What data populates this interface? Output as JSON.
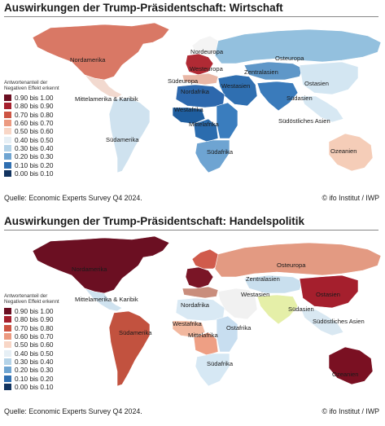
{
  "panels": [
    {
      "title": "Auswirkungen der Trump-Präsidentschaft: Wirtschaft",
      "legend_title": "Antwortenanteil der Negativen Effekt erkennt",
      "source": "Quelle: Economic Experts Survey Q4 2024.",
      "credit": "© ifo Institut / IWP",
      "regions": {
        "nordamerika": {
          "label": "Nordamerika",
          "color": "#d97865"
        },
        "mittelamerika": {
          "label": "Mittelamerika & Karibik",
          "color": "#f2d9cf"
        },
        "suedamerika": {
          "label": "Südamerika",
          "color": "#cfe2ef"
        },
        "nordeuropa": {
          "label": "Nordeuropa",
          "color": "#f4f4f4"
        },
        "westeuropa": {
          "label": "Westeuropa",
          "color": "#b02a34"
        },
        "suedeuropa": {
          "label": "Südeuropa",
          "color": "#e9b7a6"
        },
        "osteuropa": {
          "label": "Osteuropa",
          "color": "#93c0de"
        },
        "zentralasien": {
          "label": "Zentralasien",
          "color": "#5f97c8"
        },
        "westasien": {
          "label": "Westasien",
          "color": "#2f6fb1"
        },
        "ostasien": {
          "label": "Ostasien",
          "color": "#d3e6f2"
        },
        "suedasien": {
          "label": "Südasien",
          "color": "#3a7bbb"
        },
        "suedostasien": {
          "label": "Südöstliches Asien",
          "color": "#d7e8f3"
        },
        "nordafrika": {
          "label": "Nordafrika",
          "color": "#2d68ad"
        },
        "westafrika": {
          "label": "Westafrika",
          "color": "#1f5e9f"
        },
        "mittelafrika": {
          "label": "Mittelafrika",
          "color": "#2b6cae"
        },
        "ostafrika": {
          "label": "",
          "color": "#3a7dbe"
        },
        "suedafrika": {
          "label": "Südafrika",
          "color": "#6ea4d2"
        },
        "ozeanien": {
          "label": "Ozeanien",
          "color": "#f5cdb8"
        }
      }
    },
    {
      "title": "Auswirkungen der Trump-Präsidentschaft: Handelspolitik",
      "legend_title": "Antwortenanteil der Negativen Effekt erkennt",
      "source": "Quelle: Economic Experts Survey Q4 2024.",
      "credit": "© ifo Institut / IWP",
      "regions": {
        "nordamerika": {
          "label": "Nordamerika",
          "color": "#6b0f22"
        },
        "mittelamerika": {
          "label": "Mittelamerika & Karibik",
          "color": "#cfe2ef"
        },
        "suedamerika": {
          "label": "Südamerika",
          "color": "#c2523f"
        },
        "nordeuropa": {
          "label": "",
          "color": "#d05b4c"
        },
        "westeuropa": {
          "label": "",
          "color": "#7a1526"
        },
        "suedeuropa": {
          "label": "",
          "color": "#c98d7c"
        },
        "osteuropa": {
          "label": "Osteuropa",
          "color": "#e39a82"
        },
        "zentralasien": {
          "label": "Zentralasien",
          "color": "#c9dfee"
        },
        "westasien": {
          "label": "Westasien",
          "color": "#f1f1f1"
        },
        "ostasien": {
          "label": "Ostasien",
          "color": "#a51f2d"
        },
        "suedasien": {
          "label": "Südasien",
          "color": "#e5efa8"
        },
        "suedostasien": {
          "label": "Südöstliches Asien",
          "color": "#d9e8f2"
        },
        "nordafrika": {
          "label": "Nordafrika",
          "color": "#d9e9f4"
        },
        "westafrika": {
          "label": "Westafrika",
          "color": "#f2b89f"
        },
        "mittelafrika": {
          "label": "Mittelafrika",
          "color": "#ee9f84"
        },
        "ostafrika": {
          "label": "Ostafrika",
          "color": "#c8def0"
        },
        "suedafrika": {
          "label": "Südafrika",
          "color": "#d6e8f4"
        },
        "ozeanien": {
          "label": "Ozeanien",
          "color": "#7a1022"
        }
      }
    }
  ],
  "legend": [
    {
      "label": "0.90 bis 1.00",
      "color": "#6b0f22"
    },
    {
      "label": "0.80 bis 0.90",
      "color": "#a51f2d"
    },
    {
      "label": "0.70 bis 0.80",
      "color": "#cd5443"
    },
    {
      "label": "0.60 bis 0.70",
      "color": "#ec9a80"
    },
    {
      "label": "0.50 bis 0.60",
      "color": "#f8d6c6"
    },
    {
      "label": "0.40 bis 0.50",
      "color": "#e6eff5"
    },
    {
      "label": "0.30 bis 0.40",
      "color": "#b4d3e8"
    },
    {
      "label": "0.20 bis 0.30",
      "color": "#6fa5d2"
    },
    {
      "label": "0.10 bis 0.20",
      "color": "#2f6fb1"
    },
    {
      "label": "0.00 bis 0.10",
      "color": "#11335f"
    }
  ]
}
